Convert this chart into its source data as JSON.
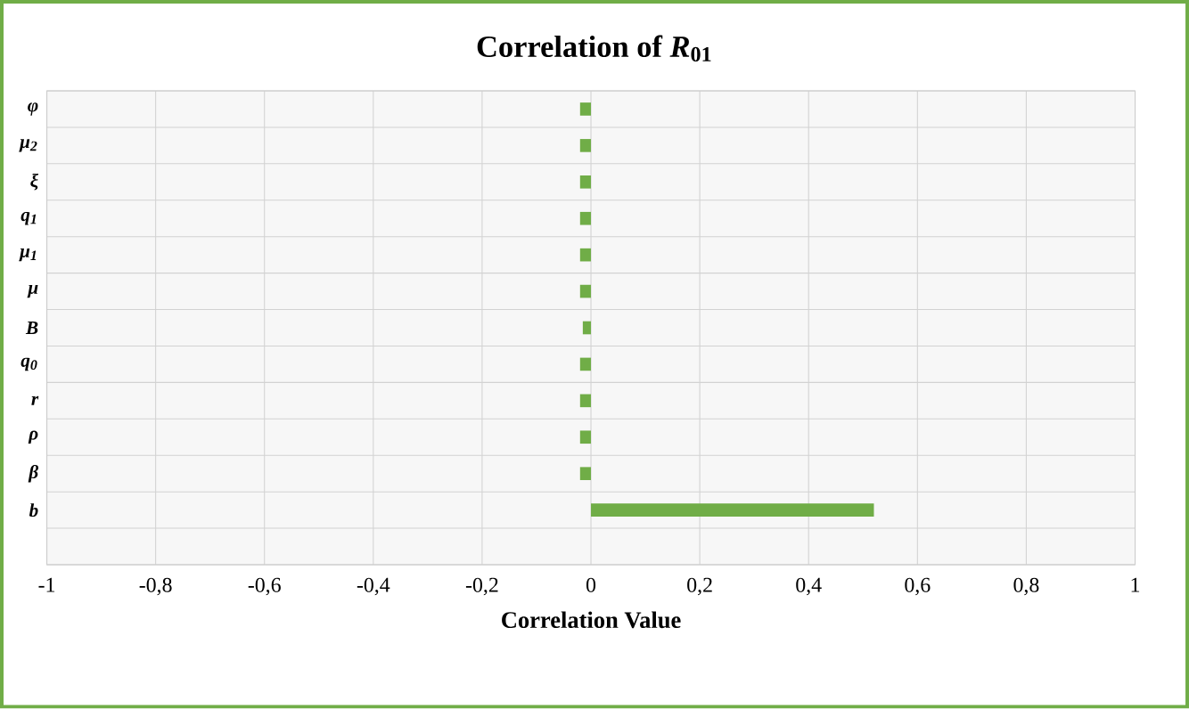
{
  "chart_data": {
    "type": "bar",
    "orientation": "horizontal",
    "title": "Correlation of *R*$_{01}$",
    "xlabel": "Correlation Value",
    "categories": [
      "φ",
      "μ$_{2}$",
      "ξ",
      "q$_{1}$",
      "μ$_{1}$",
      "μ",
      "B",
      "q$_{0}$",
      "r",
      "ρ",
      "β",
      "b"
    ],
    "values": [
      -0.02,
      -0.02,
      -0.02,
      -0.02,
      -0.02,
      -0.02,
      -0.015,
      -0.02,
      -0.02,
      -0.02,
      -0.02,
      0.52
    ],
    "color": "#70ad47",
    "xlim": [
      -1,
      1
    ],
    "xticks": [
      -1,
      {
        "value": -0.8,
        "label": "-0,8"
      },
      {
        "value": -0.6,
        "label": "-0,6"
      },
      {
        "value": -0.4,
        "label": "-0,4"
      },
      {
        "value": -0.2,
        "label": "-0,2"
      },
      0,
      {
        "value": 0.2,
        "label": "0,2"
      },
      {
        "value": 0.4,
        "label": "0,4"
      },
      {
        "value": 0.6,
        "label": "0,6"
      },
      {
        "value": 0.8,
        "label": "0,8"
      },
      1
    ],
    "grid": true
  }
}
